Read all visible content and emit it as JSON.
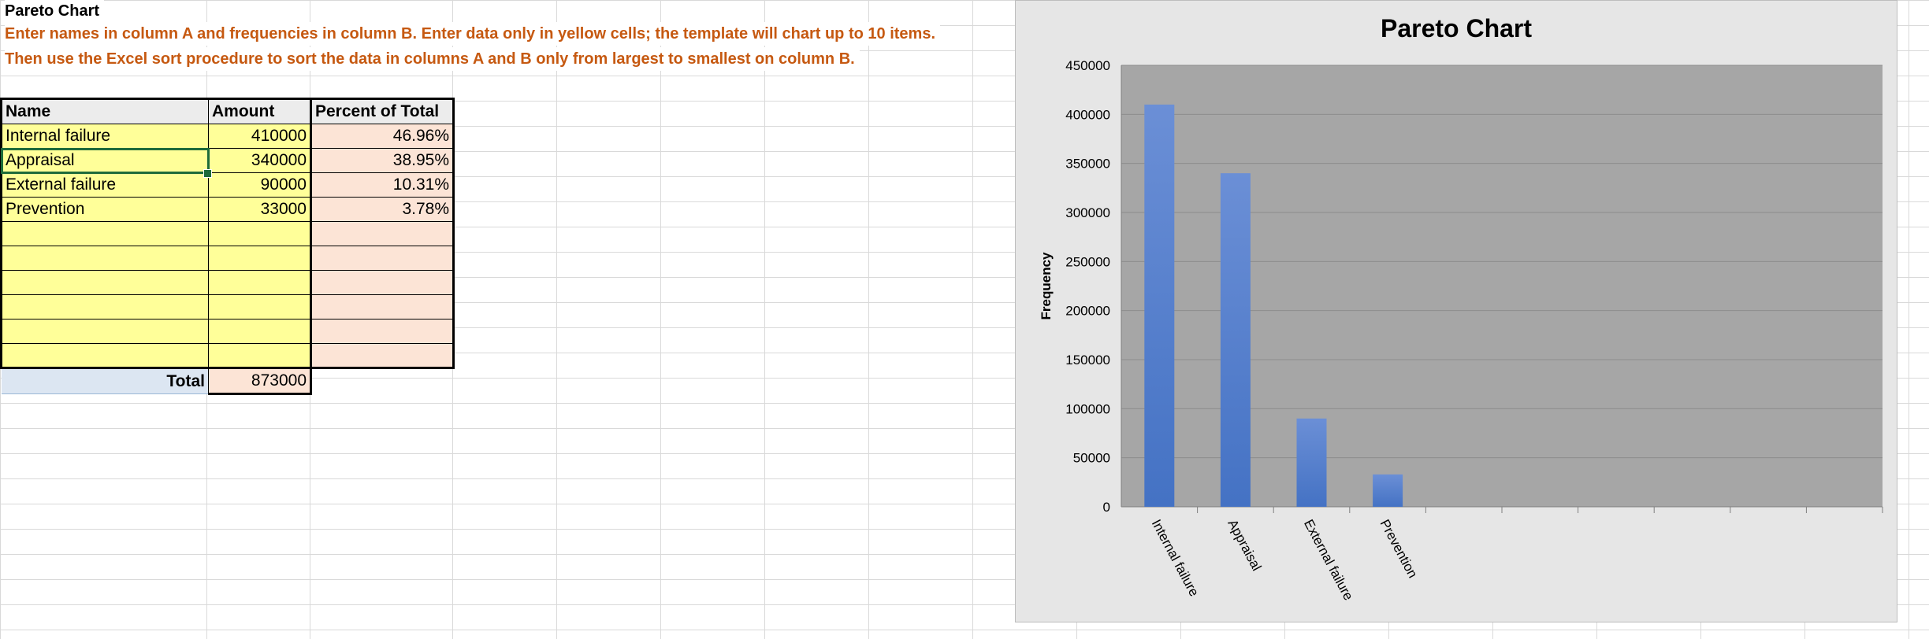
{
  "sheet": {
    "title": "Pareto Chart",
    "instruction_line1": "Enter names in column A and frequencies in column B.  Enter data only in yellow cells; the template will chart up to 10 items.",
    "instruction_line2": "Then use the Excel sort procedure to sort the data in columns A and B only from largest to smallest on column B."
  },
  "table": {
    "headers": [
      "Name",
      "Amount",
      "Percent of Total"
    ],
    "rows": [
      {
        "name": "Internal failure",
        "amount": "410000",
        "percent": "46.96%"
      },
      {
        "name": "Appraisal",
        "amount": "340000",
        "percent": "38.95%"
      },
      {
        "name": "External failure",
        "amount": "90000",
        "percent": "10.31%"
      },
      {
        "name": "Prevention",
        "amount": "33000",
        "percent": "3.78%"
      },
      {
        "name": "",
        "amount": "",
        "percent": ""
      },
      {
        "name": "",
        "amount": "",
        "percent": ""
      },
      {
        "name": "",
        "amount": "",
        "percent": ""
      },
      {
        "name": "",
        "amount": "",
        "percent": ""
      },
      {
        "name": "",
        "amount": "",
        "percent": ""
      },
      {
        "name": "",
        "amount": "",
        "percent": ""
      }
    ],
    "total_label": "Total",
    "total_value": "873000",
    "selected_cell": "A2"
  },
  "colors": {
    "input_cells": "#ffff99",
    "computed_cells": "#fce4d6",
    "instruction_text": "#c65911",
    "bar": "#4472c4",
    "plot_area": "#a6a6a6",
    "chart_area": "#e6e6e6"
  },
  "chart_data": {
    "type": "bar",
    "title": "Pareto Chart",
    "xlabel": "",
    "ylabel": "Frequency",
    "categories": [
      "Internal failure",
      "Appraisal",
      "External failure",
      "Prevention",
      "",
      "",
      "",
      "",
      "",
      ""
    ],
    "values": [
      410000,
      340000,
      90000,
      33000,
      null,
      null,
      null,
      null,
      null,
      null
    ],
    "ylim": [
      0,
      450000
    ],
    "yticks": [
      0,
      50000,
      100000,
      150000,
      200000,
      250000,
      300000,
      350000,
      400000,
      450000
    ],
    "grid": true,
    "legend": "none"
  }
}
